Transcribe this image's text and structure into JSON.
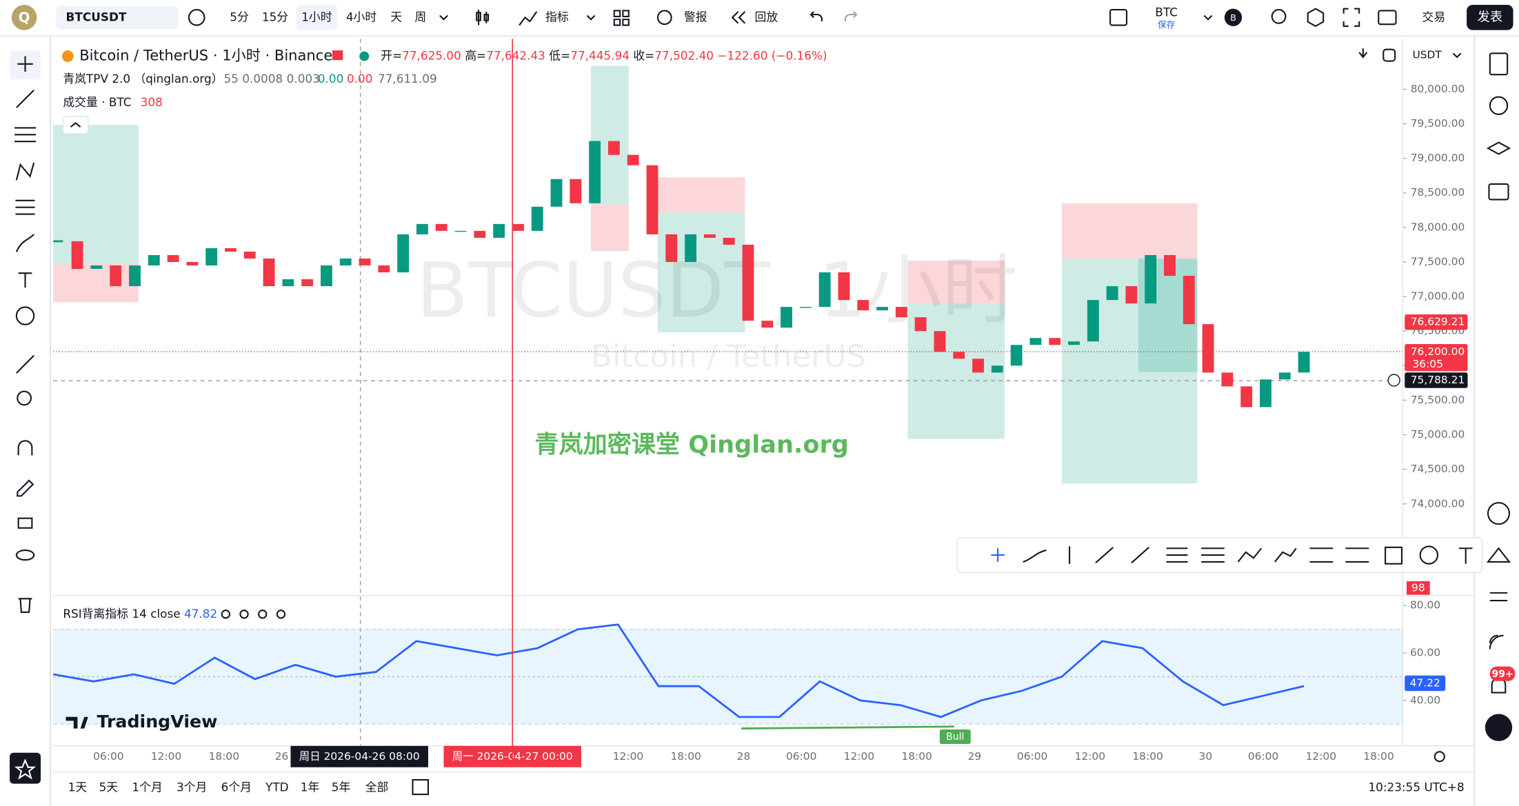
{
  "toolbar": {
    "logo": "Q",
    "symbol": "BTCUSDT",
    "intervals": [
      "5分",
      "15分",
      "1小时",
      "4小时",
      "天",
      "周"
    ],
    "indicators": "指标",
    "alert": "警报",
    "replay": "回放",
    "account": "BTC",
    "account_sub": "保存",
    "account_badge": "B",
    "trade": "交易",
    "publish": "发表"
  },
  "legend": {
    "title": "Bitcoin / TetherUS · 1小时 · Binance",
    "ohlc": [
      {
        "label": "开=",
        "value": "77,625.00"
      },
      {
        "label": "高=",
        "value": "77,642.43"
      },
      {
        "label": "低=",
        "value": "77,445.94"
      },
      {
        "label": "收=",
        "value": "77,502.40"
      }
    ],
    "change": "−122.60 (−0.16%)",
    "indicator": "青岚TPV 2.0 （qinglan.org）",
    "indicator_params": "55 0.0008 0.003",
    "indicator_values": [
      "0.00",
      "0.00",
      "77,611.09"
    ],
    "volume": "成交量 · BTC",
    "volume_value": "308",
    "currency": "USDT"
  },
  "watermark": {
    "symbol": "BTCUSDT, 1小时",
    "name": "Bitcoin / TetherUS",
    "brand": "青岚加密课堂 Qinglan.org",
    "logo": "TradingView"
  },
  "chart_data": [
    {
      "type": "candlestick",
      "closes": [
        77800,
        77400,
        77450,
        77150,
        77450,
        77600,
        77500,
        77450,
        77700,
        77650,
        77550,
        77150,
        77250,
        77150,
        77450,
        77550,
        77450,
        77350,
        77900,
        78050,
        77950,
        77950,
        77850,
        78050,
        77950,
        78300,
        78700,
        78350,
        79250,
        79050,
        78900,
        77900,
        77500,
        77900,
        77850,
        77750,
        76650,
        76550,
        76850,
        76850,
        77350,
        76950,
        76800,
        76850,
        76700,
        76500,
        76200,
        76100,
        75900,
        76000,
        76300,
        76400,
        76300,
        76350,
        76950,
        77150,
        76900,
        77600,
        77300,
        76600,
        75900,
        75700,
        75400,
        75800,
        75900,
        76200
      ],
      "ylim": [
        72670,
        80730
      ],
      "yticks": [
        {
          "value": 80000,
          "label": "80,000.00"
        },
        {
          "value": 79500,
          "label": "79,500.00"
        },
        {
          "value": 79000,
          "label": "79,000.00"
        },
        {
          "value": 78500,
          "label": "78,500.00"
        },
        {
          "value": 78000,
          "label": "78,000.00"
        },
        {
          "value": 77500,
          "label": "77,500.00"
        },
        {
          "value": 77000,
          "label": "77,000.00"
        },
        {
          "value": 76500,
          "label": "76,500.00"
        },
        {
          "value": 76000,
          "label": "76,000.00"
        },
        {
          "value": 75500,
          "label": "75,500.00"
        },
        {
          "value": 75000,
          "label": "75,000.00"
        },
        {
          "value": 74500,
          "label": "74,500.00"
        },
        {
          "value": 74000,
          "label": "74,000.00"
        }
      ],
      "price_tags": [
        {
          "value": 76629.21,
          "label": "76,629.21",
          "color": "#f23645"
        },
        {
          "value": 76200,
          "label": "76,200.00",
          "color": "#f23645",
          "sub": "36:05"
        },
        {
          "value": 75788.21,
          "label": "75,788.21",
          "color": "#131722"
        }
      ],
      "volume_tag": "98",
      "up_color": "#089981",
      "down_color": "#f23645",
      "grid": false,
      "categories": [
        "06:00",
        "12:00",
        "18:00",
        "26",
        null,
        null,
        null,
        null,
        null,
        "12:00",
        "18:00",
        "28",
        "06:00",
        "12:00",
        "18:00",
        "29",
        "06:00",
        "12:00",
        "18:00",
        "30",
        "06:00",
        "12:00",
        "18:00"
      ],
      "crosshair_labels": [
        "周日 2026-04-26  08:00",
        "周一 2026-04-27  00:00"
      ]
    },
    {
      "type": "line",
      "title": "RSI背离指标 14 close",
      "value_label": "47.82",
      "color": "#2962ff",
      "values": [
        51,
        48,
        51,
        47,
        58,
        49,
        55,
        50,
        52,
        65,
        62,
        59,
        62,
        70,
        72,
        46,
        46,
        33,
        33,
        48,
        40,
        38,
        33,
        40,
        44,
        50,
        65,
        62,
        48,
        38,
        42,
        46
      ],
      "ylim": [
        20.8,
        83.3
      ],
      "yticks": [
        {
          "value": 80,
          "label": "80.00"
        },
        {
          "value": 60,
          "label": "60.00"
        },
        {
          "value": 40,
          "label": "40.00"
        }
      ],
      "band": [
        30,
        70
      ],
      "midline": 50,
      "last_tag": {
        "value": 47.22,
        "label": "47.22"
      },
      "annotation": "Bull"
    }
  ],
  "sidebar": {
    "notifications": "99+"
  },
  "bottom": {
    "ranges": [
      "1天",
      "5天",
      "1个月",
      "3个月",
      "6个月",
      "YTD",
      "1年",
      "5年",
      "全部"
    ],
    "clock": "10:23:55 UTC+8"
  }
}
